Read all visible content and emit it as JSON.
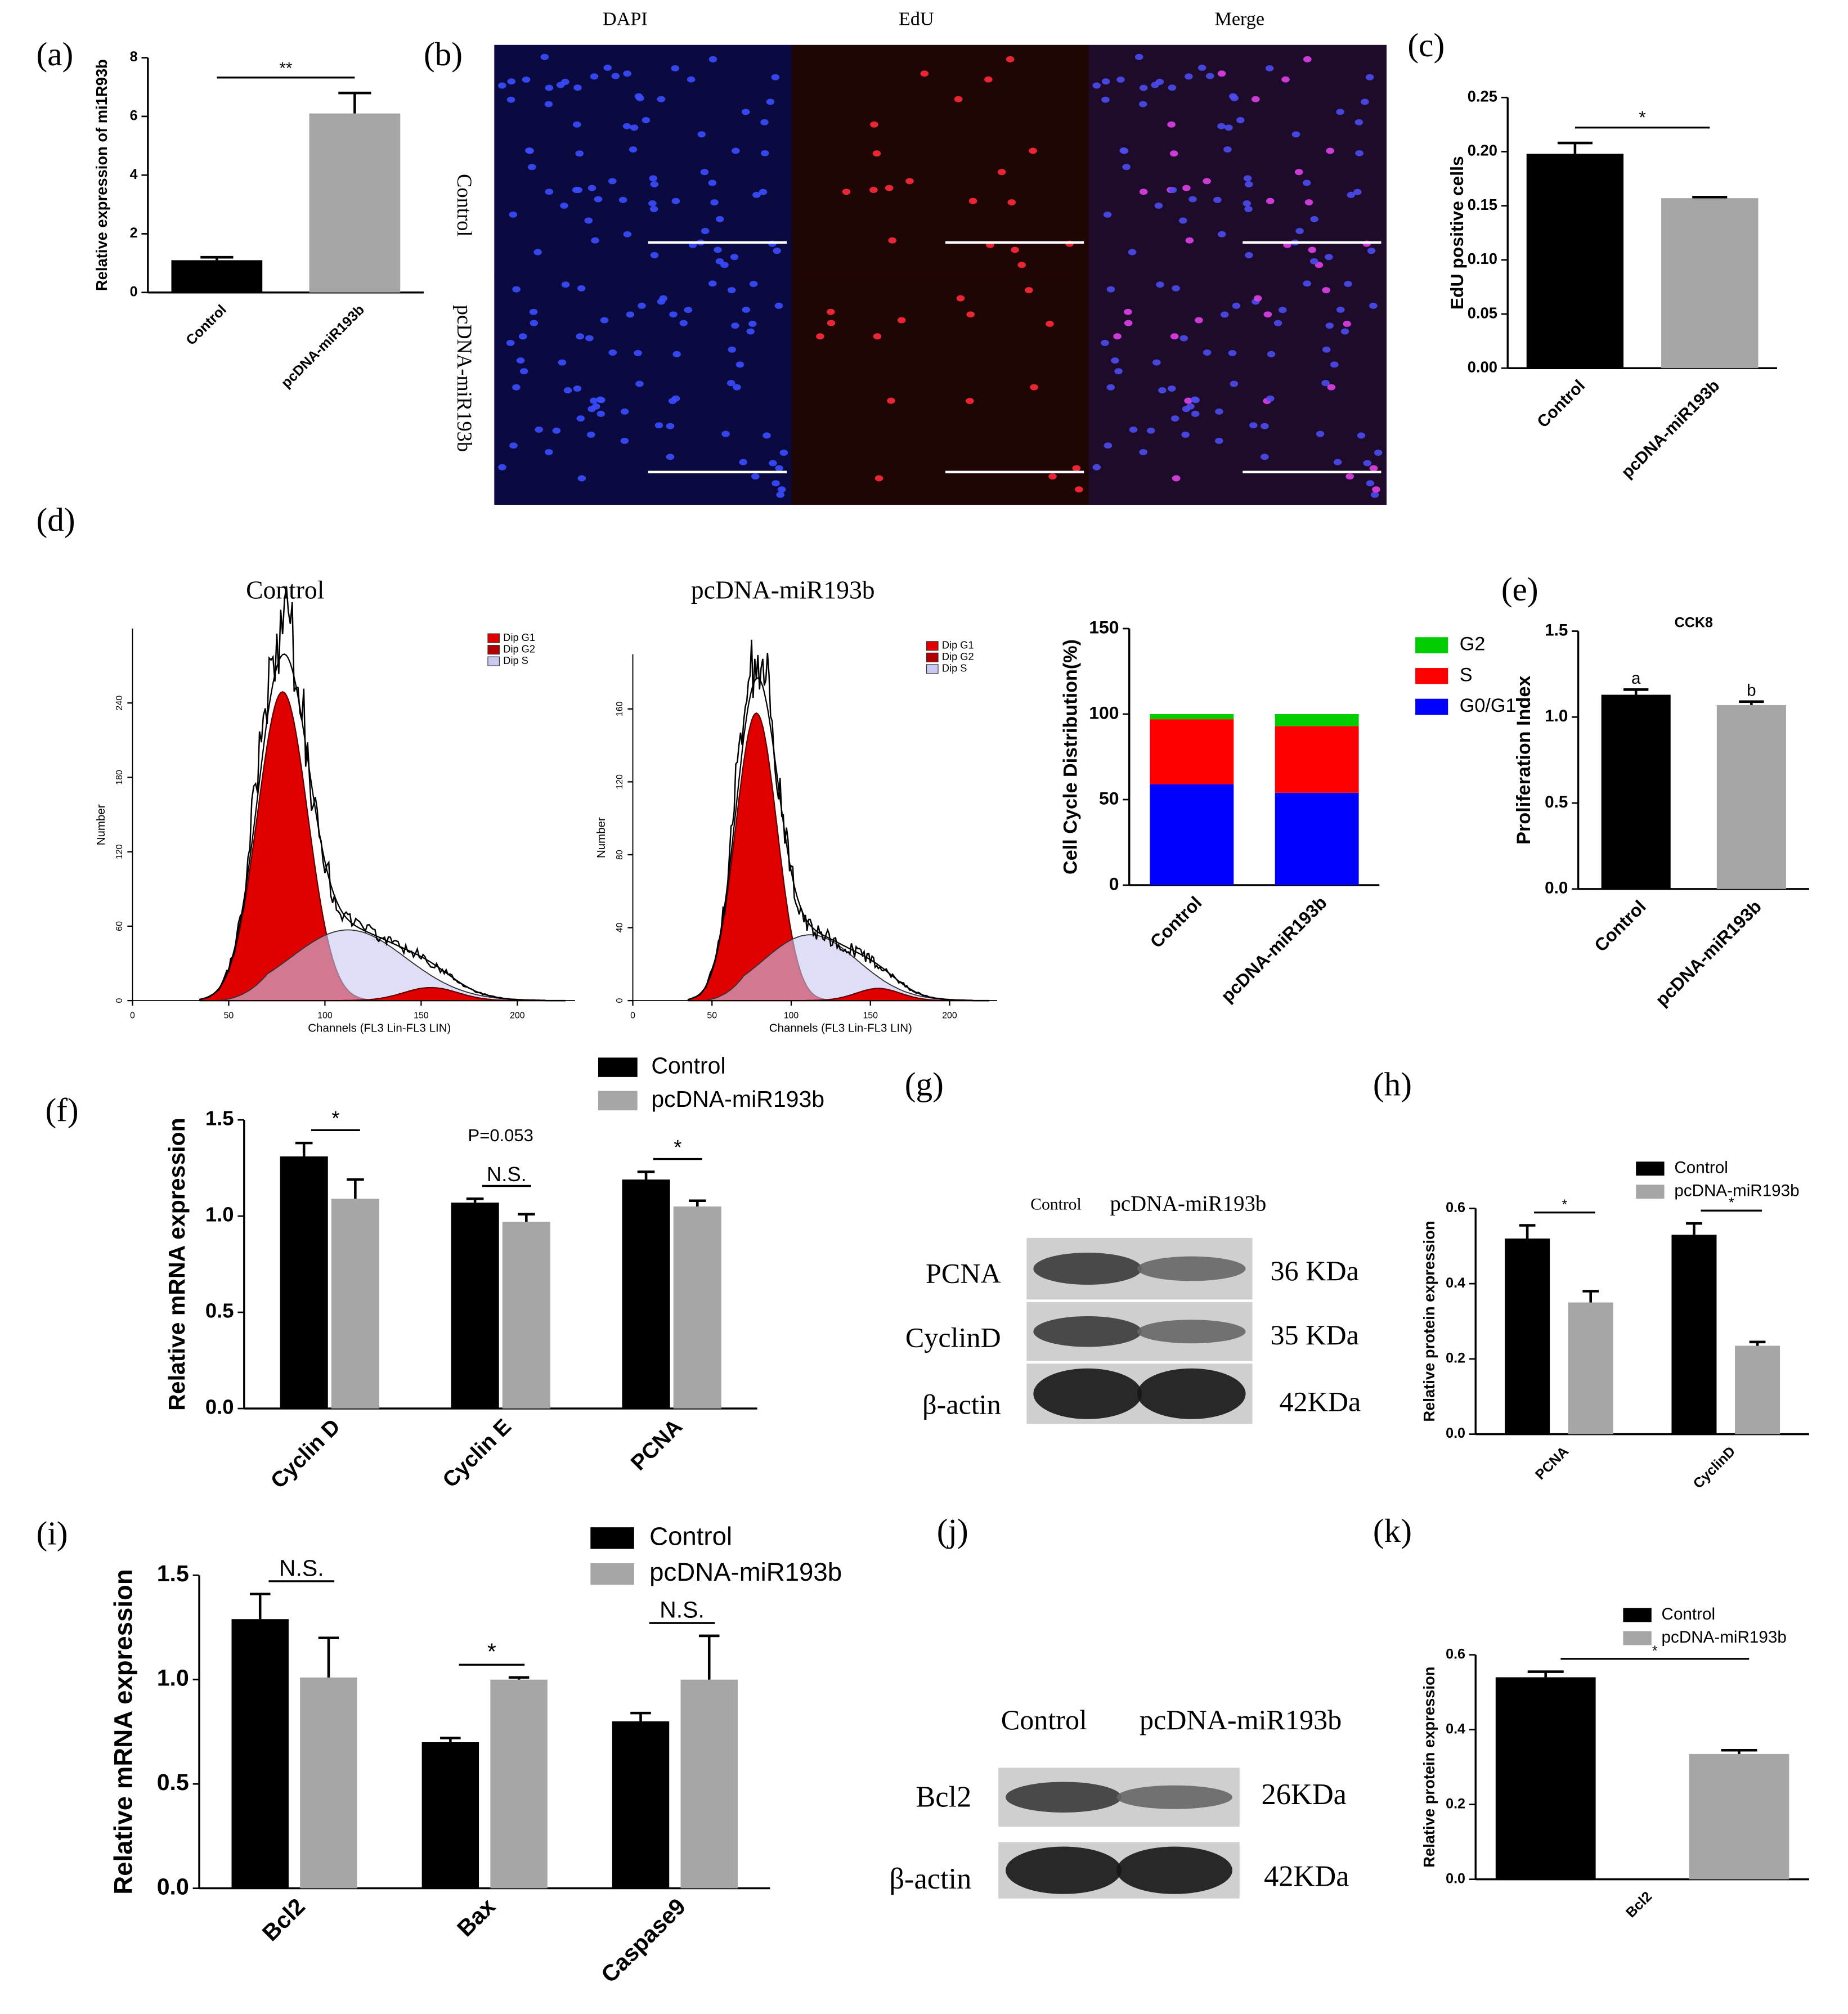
{
  "panels": [
    "(a)",
    "(b)",
    "(c)",
    "(d)",
    "(e)",
    "(f)",
    "(g)",
    "(h)",
    "(i)",
    "(j)",
    "(k)"
  ],
  "microscopy": {
    "columns": [
      "DAPI",
      "EdU",
      "Merge"
    ],
    "rows": [
      "Control",
      "pcDNA-miR193b"
    ]
  },
  "flow_histograms": [
    {
      "title": "Control",
      "legend": [
        "Dip G1",
        "Dip G2",
        "Dip S"
      ],
      "xlabel": "Channels (FL3 Lin-FL3 LIN)",
      "ylabel": "Number",
      "xlim": [
        0,
        230
      ],
      "ylim": [
        0,
        300
      ],
      "xticks": [
        0,
        50,
        100,
        150,
        200
      ],
      "yticks": [
        0,
        60,
        120,
        180,
        240
      ]
    },
    {
      "title": "pcDNA-miR193b",
      "legend": [
        "Dip G1",
        "Dip G2",
        "Dip S"
      ],
      "xlabel": "Channels (FL3 Lin-FL3 LIN)",
      "ylabel": "Number",
      "xlim": [
        0,
        230
      ],
      "ylim": [
        0,
        190
      ],
      "xticks": [
        0,
        50,
        100,
        150,
        200
      ],
      "yticks": [
        0,
        40,
        80,
        120,
        160
      ]
    }
  ],
  "blots": [
    {
      "lanes": [
        "Control",
        "pcDNA-miR193b"
      ],
      "bands": [
        {
          "name": "PCNA",
          "size": "36 KDa"
        },
        {
          "name": "CyclinD",
          "size": "35 KDa"
        },
        {
          "name": "β-actin",
          "size": "42KDa"
        }
      ]
    },
    {
      "lanes": [
        "Control",
        "pcDNA-miR193b"
      ],
      "bands": [
        {
          "name": "Bcl2",
          "size": "26KDa"
        },
        {
          "name": "β-actin",
          "size": "42KDa"
        }
      ]
    }
  ],
  "chart_data": [
    {
      "type": "bar",
      "ylabel": "Relative expression of mi1R93b",
      "categories": [
        "Control",
        "pcDNA-miR193b"
      ],
      "values": [
        1.1,
        6.1
      ],
      "errors": [
        0.1,
        0.7
      ],
      "colors": [
        "#000000",
        "#a6a6a6"
      ],
      "significance": "**",
      "ylim": [
        0,
        8
      ],
      "yticks": [
        0,
        2,
        4,
        6,
        8
      ]
    },
    {
      "type": "bar",
      "ylabel": "EdU positive cells",
      "categories": [
        "Control",
        "pcDNA-miR193b"
      ],
      "values": [
        0.198,
        0.157
      ],
      "errors": [
        0.01,
        0.001
      ],
      "colors": [
        "#000000",
        "#a6a6a6"
      ],
      "significance": "*",
      "ylim": [
        0,
        0.25
      ],
      "yticks": [
        {
          "value": 0,
          "label": "0.00"
        },
        {
          "value": 0.05,
          "label": "0.05"
        },
        {
          "value": 0.1,
          "label": "0.10"
        },
        {
          "value": 0.15,
          "label": "0.15"
        },
        {
          "value": 0.2,
          "label": "0.20"
        },
        {
          "value": 0.25,
          "label": "0.25"
        }
      ]
    },
    {
      "type": "stacked_bar",
      "ylabel": "Cell Cycle Distribution(%)",
      "categories": [
        "Control",
        "pcDNA-miR193b"
      ],
      "series": [
        {
          "name": "G0/G1",
          "color": "#0000ff",
          "values": [
            59,
            54
          ]
        },
        {
          "name": "S",
          "color": "#ff0000",
          "values": [
            38,
            39
          ]
        },
        {
          "name": "G2",
          "color": "#00cc00",
          "values": [
            3,
            7
          ]
        }
      ],
      "ylim": [
        0,
        150
      ],
      "yticks": [
        0,
        50,
        100,
        150
      ]
    },
    {
      "type": "bar",
      "title": "CCK8",
      "ylabel": "Proliferation Index",
      "categories": [
        "Control",
        "pcDNA-miR193b"
      ],
      "values": [
        1.13,
        1.07
      ],
      "errors": [
        0.03,
        0.02
      ],
      "colors": [
        "#000000",
        "#a6a6a6"
      ],
      "letters": [
        "a",
        "b"
      ],
      "ylim": [
        0,
        1.5
      ],
      "yticks": [
        {
          "value": 0,
          "label": "0.0"
        },
        {
          "value": 0.5,
          "label": "0.5"
        },
        {
          "value": 1,
          "label": "1.0"
        },
        {
          "value": 1.5,
          "label": "1.5"
        }
      ]
    },
    {
      "type": "grouped_bar",
      "ylabel": "Relative mRNA expression",
      "categories": [
        "Cyclin D",
        "Cyclin E",
        "PCNA"
      ],
      "series": [
        {
          "name": "Control",
          "color": "#000000",
          "values": [
            1.31,
            1.07,
            1.19
          ],
          "errors": [
            0.07,
            0.02,
            0.04
          ]
        },
        {
          "name": "pcDNA-miR193b",
          "color": "#a6a6a6",
          "values": [
            1.09,
            0.97,
            1.05
          ],
          "errors": [
            0.1,
            0.04,
            0.03
          ]
        }
      ],
      "significance": [
        "*",
        "N.S.",
        "*"
      ],
      "note": "P=0.053",
      "ylim": [
        0,
        1.5
      ],
      "yticks": [
        {
          "value": 0,
          "label": "0.0"
        },
        {
          "value": 0.5,
          "label": "0.5"
        },
        {
          "value": 1,
          "label": "1.0"
        },
        {
          "value": 1.5,
          "label": "1.5"
        }
      ]
    },
    {
      "type": "grouped_bar",
      "ylabel": "Relative protein expression",
      "categories": [
        "PCNA",
        "CyclinD"
      ],
      "series": [
        {
          "name": "Control",
          "color": "#000000",
          "values": [
            0.52,
            0.53
          ],
          "errors": [
            0.035,
            0.03
          ]
        },
        {
          "name": "pcDNA-miR193b",
          "color": "#a6a6a6",
          "values": [
            0.35,
            0.235
          ],
          "errors": [
            0.03,
            0.01
          ]
        }
      ],
      "significance": [
        "*",
        "*"
      ],
      "ylim": [
        0,
        0.6
      ],
      "yticks": [
        {
          "value": 0,
          "label": "0.0"
        },
        {
          "value": 0.2,
          "label": "0.2"
        },
        {
          "value": 0.4,
          "label": "0.4"
        },
        {
          "value": 0.6,
          "label": "0.6"
        }
      ]
    },
    {
      "type": "grouped_bar",
      "ylabel": "Relative mRNA expression",
      "categories": [
        "Bcl2",
        "Bax",
        "Caspase9"
      ],
      "series": [
        {
          "name": "Control",
          "color": "#000000",
          "values": [
            1.29,
            0.7,
            0.8
          ],
          "errors": [
            0.12,
            0.02,
            0.04
          ]
        },
        {
          "name": "pcDNA-miR193b",
          "color": "#a6a6a6",
          "values": [
            1.01,
            1.0,
            1.0
          ],
          "errors": [
            0.19,
            0.01,
            0.21
          ]
        }
      ],
      "significance": [
        "N.S.",
        "*",
        "N.S."
      ],
      "ylim": [
        0,
        1.5
      ],
      "yticks": [
        {
          "value": 0,
          "label": "0.0"
        },
        {
          "value": 0.5,
          "label": "0.5"
        },
        {
          "value": 1,
          "label": "1.0"
        },
        {
          "value": 1.5,
          "label": "1.5"
        }
      ]
    },
    {
      "type": "grouped_bar",
      "ylabel": "Relative protein expression",
      "categories": [
        "Bcl2"
      ],
      "series": [
        {
          "name": "Control",
          "color": "#000000",
          "values": [
            0.54
          ],
          "errors": [
            0.015
          ]
        },
        {
          "name": "pcDNA-miR193b",
          "color": "#a6a6a6",
          "values": [
            0.335
          ],
          "errors": [
            0.01
          ]
        }
      ],
      "significance": [
        "*"
      ],
      "ylim": [
        0,
        0.6
      ],
      "yticks": [
        {
          "value": 0,
          "label": "0.0"
        },
        {
          "value": 0.2,
          "label": "0.2"
        },
        {
          "value": 0.4,
          "label": "0.4"
        },
        {
          "value": 0.6,
          "label": "0.6"
        }
      ]
    }
  ]
}
